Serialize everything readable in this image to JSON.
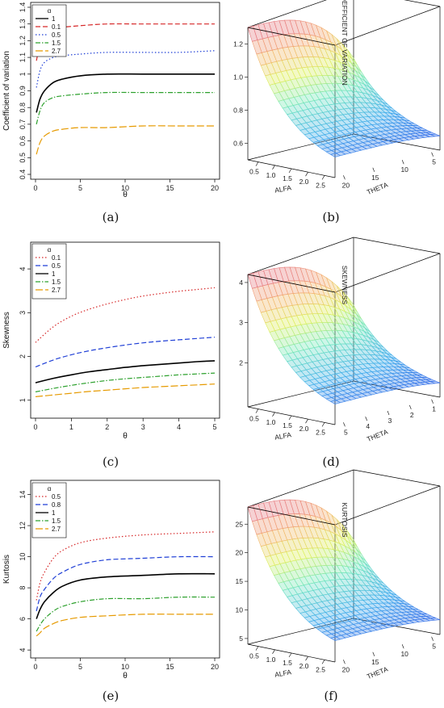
{
  "panels": {
    "a": {
      "caption": "(a)"
    },
    "b": {
      "caption": "(b)"
    },
    "c": {
      "caption": "(c)"
    },
    "d": {
      "caption": "(d)"
    },
    "e": {
      "caption": "(e)"
    },
    "f": {
      "caption": "(f)"
    }
  },
  "chart_data": [
    {
      "id": "a",
      "type": "line",
      "xlabel": "θ",
      "ylabel": "Coefficient of variation",
      "xlim": [
        0,
        20
      ],
      "ylim": [
        0.4,
        1.4
      ],
      "xticks": [
        0,
        5,
        10,
        15,
        20
      ],
      "yticks": [
        0.4,
        0.5,
        0.6,
        0.7,
        0.8,
        0.9,
        1.0,
        1.1,
        1.2,
        1.3,
        1.4
      ],
      "legend_title": "α",
      "legend_position": "top-left",
      "series": [
        {
          "name": "1",
          "color": "#000000",
          "dash": "solid",
          "x": [
            0.1,
            0.5,
            1,
            2,
            3,
            5,
            8,
            12,
            16,
            20
          ],
          "values": [
            0.77,
            0.85,
            0.9,
            0.95,
            0.97,
            0.99,
            1.0,
            1.0,
            1.0,
            1.0
          ]
        },
        {
          "name": "0.1",
          "color": "#d62728",
          "dash": "dashed",
          "x": [
            0.1,
            0.5,
            1,
            2,
            3,
            5,
            8,
            12,
            16,
            20
          ],
          "values": [
            1.08,
            1.18,
            1.23,
            1.27,
            1.28,
            1.29,
            1.3,
            1.3,
            1.3,
            1.3
          ]
        },
        {
          "name": "0.5",
          "color": "#1f3fd6",
          "dash": "dotted",
          "x": [
            0.1,
            0.5,
            1,
            2,
            3,
            5,
            8,
            12,
            16,
            20
          ],
          "values": [
            0.92,
            1.02,
            1.07,
            1.1,
            1.11,
            1.12,
            1.13,
            1.13,
            1.13,
            1.14
          ]
        },
        {
          "name": "1.5",
          "color": "#2ca02c",
          "dash": "dashdot",
          "x": [
            0.1,
            0.5,
            1,
            2,
            3,
            5,
            8,
            12,
            16,
            20
          ],
          "values": [
            0.7,
            0.78,
            0.83,
            0.86,
            0.87,
            0.88,
            0.89,
            0.89,
            0.89,
            0.89
          ]
        },
        {
          "name": "2.7",
          "color": "#e69a00",
          "dash": "longdash",
          "x": [
            0.1,
            0.5,
            1,
            2,
            3,
            5,
            8,
            12,
            16,
            20
          ],
          "values": [
            0.52,
            0.59,
            0.63,
            0.66,
            0.67,
            0.68,
            0.68,
            0.69,
            0.69,
            0.69
          ]
        }
      ]
    },
    {
      "id": "c",
      "type": "line",
      "xlabel": "θ",
      "ylabel": "Skewness",
      "xlim": [
        0,
        5
      ],
      "ylim": [
        0.7,
        4.5
      ],
      "xticks": [
        0,
        1,
        2,
        3,
        4,
        5
      ],
      "yticks": [
        1,
        2,
        3,
        4
      ],
      "legend_title": "α",
      "legend_position": "top-left",
      "series": [
        {
          "name": "0.1",
          "color": "#d62728",
          "dash": "dotted",
          "x": [
            0,
            0.5,
            1,
            1.5,
            2,
            2.5,
            3,
            3.5,
            4,
            4.5,
            5
          ],
          "values": [
            2.32,
            2.68,
            2.92,
            3.08,
            3.2,
            3.3,
            3.38,
            3.44,
            3.49,
            3.53,
            3.57
          ]
        },
        {
          "name": "0.5",
          "color": "#1f3fd6",
          "dash": "dashed",
          "x": [
            0,
            0.5,
            1,
            1.5,
            2,
            2.5,
            3,
            3.5,
            4,
            4.5,
            5
          ],
          "values": [
            1.76,
            1.92,
            2.04,
            2.13,
            2.2,
            2.26,
            2.31,
            2.35,
            2.38,
            2.41,
            2.44
          ]
        },
        {
          "name": "1",
          "color": "#000000",
          "dash": "solid",
          "x": [
            0,
            0.5,
            1,
            1.5,
            2,
            2.5,
            3,
            3.5,
            4,
            4.5,
            5
          ],
          "values": [
            1.4,
            1.5,
            1.58,
            1.65,
            1.7,
            1.75,
            1.79,
            1.82,
            1.85,
            1.88,
            1.9
          ]
        },
        {
          "name": "1.5",
          "color": "#2ca02c",
          "dash": "dashdot",
          "x": [
            0,
            0.5,
            1,
            1.5,
            2,
            2.5,
            3,
            3.5,
            4,
            4.5,
            5
          ],
          "values": [
            1.19,
            1.27,
            1.34,
            1.4,
            1.45,
            1.49,
            1.52,
            1.55,
            1.58,
            1.6,
            1.62
          ]
        },
        {
          "name": "2.7",
          "color": "#e69a00",
          "dash": "longdash",
          "x": [
            0,
            0.5,
            1,
            1.5,
            2,
            2.5,
            3,
            3.5,
            4,
            4.5,
            5
          ],
          "values": [
            1.08,
            1.12,
            1.16,
            1.2,
            1.23,
            1.26,
            1.29,
            1.31,
            1.33,
            1.35,
            1.37
          ]
        }
      ]
    },
    {
      "id": "e",
      "type": "line",
      "xlabel": "θ",
      "ylabel": "Kurtosis",
      "xlim": [
        0,
        20
      ],
      "ylim": [
        3.8,
        14.6
      ],
      "xticks": [
        0,
        5,
        10,
        15,
        20
      ],
      "yticks": [
        4,
        6,
        8,
        10,
        12,
        14
      ],
      "legend_title": "α",
      "legend_position": "top-left",
      "series": [
        {
          "name": "0.5",
          "color": "#d62728",
          "dash": "dotted",
          "x": [
            0.1,
            0.5,
            1,
            2,
            3,
            5,
            8,
            12,
            16,
            20
          ],
          "values": [
            7.2,
            8.3,
            9.0,
            9.9,
            10.4,
            10.9,
            11.2,
            11.4,
            11.5,
            11.6
          ]
        },
        {
          "name": "0.8",
          "color": "#1f3fd6",
          "dash": "dashed",
          "x": [
            0.1,
            0.5,
            1,
            2,
            3,
            5,
            8,
            12,
            16,
            20
          ],
          "values": [
            6.5,
            7.4,
            7.9,
            8.6,
            9.0,
            9.5,
            9.8,
            9.9,
            10.0,
            10.0
          ]
        },
        {
          "name": "1",
          "color": "#000000",
          "dash": "solid",
          "x": [
            0.1,
            0.5,
            1,
            2,
            3,
            5,
            8,
            12,
            16,
            20
          ],
          "values": [
            6.0,
            6.6,
            7.1,
            7.7,
            8.1,
            8.5,
            8.7,
            8.8,
            8.9,
            8.9
          ]
        },
        {
          "name": "1.5",
          "color": "#2ca02c",
          "dash": "dashdot",
          "x": [
            0.1,
            0.5,
            1,
            2,
            3,
            5,
            8,
            12,
            16,
            20
          ],
          "values": [
            5.2,
            5.6,
            6.0,
            6.5,
            6.8,
            7.1,
            7.3,
            7.3,
            7.4,
            7.4
          ]
        },
        {
          "name": "2.7",
          "color": "#e69a00",
          "dash": "longdash",
          "x": [
            0.1,
            0.5,
            1,
            2,
            3,
            5,
            8,
            12,
            16,
            20
          ],
          "values": [
            4.9,
            5.1,
            5.4,
            5.7,
            5.9,
            6.1,
            6.2,
            6.3,
            6.3,
            6.3
          ]
        }
      ]
    },
    {
      "id": "b",
      "type": "surface",
      "zlabel": "COEFFICIENT OF VARIATION",
      "xlabel": "ALFA",
      "ylabel": "THETA",
      "alfa_ticks": [
        "0.5",
        "1.0",
        "1.5",
        "2.0",
        "2.5"
      ],
      "theta_ticks": [
        "20",
        "15",
        "10",
        "5"
      ],
      "z_ticks": [
        "0.6",
        "0.8",
        "1.0",
        "1.2"
      ],
      "zlim": [
        0.5,
        1.3
      ],
      "alfa_range": [
        0.1,
        2.7
      ],
      "theta_range": [
        0.1,
        20
      ]
    },
    {
      "id": "d",
      "type": "surface",
      "zlabel": "SKEWNESS",
      "xlabel": "ALFA",
      "ylabel": "THETA",
      "alfa_ticks": [
        "0.5",
        "1.0",
        "1.5",
        "2.0",
        "2.5"
      ],
      "theta_ticks": [
        "5",
        "4",
        "3",
        "2",
        "1"
      ],
      "z_ticks": [
        "2",
        "3",
        "4"
      ],
      "zlim": [
        0.9,
        4.2
      ],
      "alfa_range": [
        0.1,
        2.7
      ],
      "theta_range": [
        0,
        5
      ]
    },
    {
      "id": "f",
      "type": "surface",
      "zlabel": "KURTOSIS",
      "xlabel": "ALFA",
      "ylabel": "THETA",
      "alfa_ticks": [
        "0.5",
        "1.0",
        "1.5",
        "2.0",
        "2.5"
      ],
      "theta_ticks": [
        "20",
        "15",
        "10",
        "5"
      ],
      "z_ticks": [
        "5",
        "10",
        "15",
        "20",
        "25"
      ],
      "zlim": [
        4,
        28
      ],
      "alfa_range": [
        0.1,
        2.7
      ],
      "theta_range": [
        0.1,
        20
      ]
    }
  ]
}
